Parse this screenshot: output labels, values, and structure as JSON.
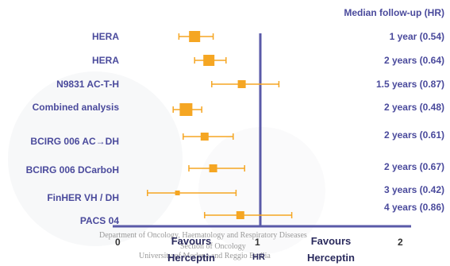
{
  "chart_data": {
    "type": "forest",
    "right_header": "Median follow-up (HR)",
    "xlim": [
      0,
      2
    ],
    "reference_line": 1,
    "xticks": [
      "0",
      "1",
      "2"
    ],
    "xlabel": "HR",
    "favours_left": "Favours Herceptin",
    "favours_right": "Favours Herceptin",
    "marker_color": "#f5a623",
    "axis_color": "#5a5aa8",
    "studies": [
      {
        "name": "HERA",
        "follow_up": "1 year  (0.54)",
        "hr": 0.54,
        "ci": [
          0.43,
          0.67
        ],
        "weight": 3
      },
      {
        "name": "HERA",
        "follow_up": "2 years (0.64)",
        "hr": 0.64,
        "ci": [
          0.54,
          0.76
        ],
        "weight": 3
      },
      {
        "name": "N9831 AC-T-H",
        "follow_up": "1.5 years (0.87)",
        "hr": 0.87,
        "ci": [
          0.66,
          1.13
        ],
        "weight": 2
      },
      {
        "name": "Combined analysis",
        "follow_up": "2 years (0.48)",
        "hr": 0.48,
        "ci": [
          0.39,
          0.59
        ],
        "weight": 4
      },
      {
        "name": "BCIRG 006 AC→DH",
        "follow_up": "2 years (0.61)",
        "hr": 0.61,
        "ci": [
          0.46,
          0.81
        ],
        "weight": 2
      },
      {
        "name": "BCIRG 006 DCarboH",
        "follow_up": "2 years (0.67)",
        "hr": 0.67,
        "ci": [
          0.5,
          0.89
        ],
        "weight": 2
      },
      {
        "name": "FinHER VH / DH",
        "follow_up": "3 years (0.42)",
        "hr": 0.42,
        "ci": [
          0.21,
          0.83
        ],
        "weight": 1
      },
      {
        "name": "PACS 04",
        "follow_up": "4 years (0.86)",
        "hr": 0.86,
        "ci": [
          0.61,
          1.22
        ],
        "weight": 2
      }
    ]
  },
  "watermark": {
    "line1": "Department of Oncology, Haematology and Respiratory Diseases",
    "line2": "Section of Oncology",
    "line3": "University of Modena and Reggio Emilia"
  }
}
